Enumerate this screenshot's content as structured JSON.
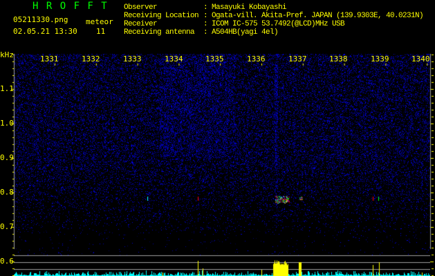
{
  "header": {
    "title": "H R O F F T",
    "filename": "05211330.png",
    "datetime": "02.05.21 13:30",
    "meteor_label": "meteor",
    "meteor_count": "11"
  },
  "info": [
    {
      "label": "Observer",
      "value": ": Masayuki Kobayashi"
    },
    {
      "label": "Receiving Location",
      "value": ": Ogata-vill. Akita-Pref. JAPAN (139.9303E, 40.0231N)"
    },
    {
      "label": "Receiver",
      "value": ": ICOM IC-575 53.7492(@LCD)MHz USB"
    },
    {
      "label": "Receiving antenna",
      "value": ": A504HB(yagi 4el)"
    }
  ],
  "axes": {
    "y_unit": "kHz",
    "x_ticks": [
      "1331",
      "1332",
      "1333",
      "1334",
      "1335",
      "1336",
      "1337",
      "1338",
      "1339",
      "1340"
    ],
    "y_ticks": [
      "1.1",
      "1.0",
      "0.9",
      "0.8",
      "0.7",
      "0.6"
    ]
  },
  "colors": {
    "text": "#ffff00",
    "title": "#00ff00",
    "noise": "#0000ff",
    "histogram": "#00ffff",
    "detection": "#ffff00"
  }
}
